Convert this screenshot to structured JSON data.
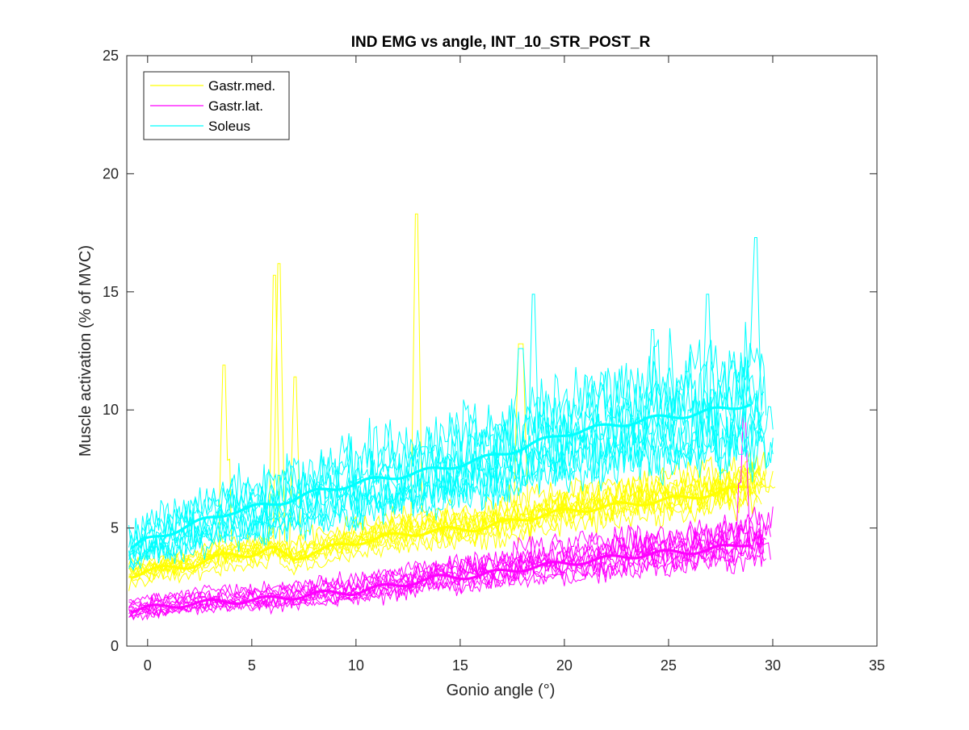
{
  "chart_data": {
    "type": "line",
    "title": "IND EMG vs angle, INT_10_STR_POST_R",
    "xlabel": "Gonio angle (°)",
    "ylabel": "Muscle activation (% of MVC)",
    "xlim": [
      -1,
      35
    ],
    "ylim": [
      0,
      25
    ],
    "xticks": [
      0,
      5,
      10,
      15,
      20,
      25,
      30,
      35
    ],
    "yticks": [
      0,
      5,
      10,
      15,
      20,
      25
    ],
    "xtick_labels": [
      "0",
      "5",
      "10",
      "15",
      "20",
      "25",
      "30",
      "35"
    ],
    "ytick_labels": [
      "0",
      "5",
      "10",
      "15",
      "20",
      "25"
    ],
    "grid": false,
    "legend_position": "top-left",
    "trial_count_per_muscle": 10,
    "series": [
      {
        "name": "Gastr.med.",
        "color": "#ffff00",
        "mean_x": [
          -0.8,
          0,
          2,
          4,
          5,
          6,
          7,
          8,
          10,
          12,
          14,
          16,
          18,
          20,
          22,
          24,
          26,
          28,
          29
        ],
        "mean_y": [
          3.0,
          3.2,
          3.4,
          3.9,
          3.9,
          4.1,
          3.7,
          4.0,
          4.4,
          4.7,
          4.9,
          5.0,
          5.4,
          5.7,
          5.9,
          6.1,
          6.3,
          6.6,
          6.8
        ],
        "spikes": [
          {
            "x": 3.7,
            "y": 11.9
          },
          {
            "x": 6.1,
            "y": 15.7
          },
          {
            "x": 6.3,
            "y": 16.2
          },
          {
            "x": 7.1,
            "y": 11.4
          },
          {
            "x": 12.9,
            "y": 18.3
          },
          {
            "x": 17.9,
            "y": 12.8
          }
        ]
      },
      {
        "name": "Gastr.lat.",
        "color": "#ff00ff",
        "mean_x": [
          -0.8,
          0,
          2,
          4,
          6,
          8,
          10,
          12,
          14,
          16,
          18,
          20,
          22,
          24,
          26,
          28,
          29
        ],
        "mean_y": [
          1.5,
          1.6,
          1.8,
          1.9,
          2.0,
          2.2,
          2.3,
          2.6,
          2.9,
          3.0,
          3.3,
          3.5,
          3.7,
          3.9,
          4.0,
          4.2,
          4.4
        ],
        "spikes": [
          {
            "x": 28.6,
            "y": 9.8
          }
        ]
      },
      {
        "name": "Soleus",
        "color": "#00ffff",
        "mean_x": [
          -0.8,
          0,
          2,
          4,
          6,
          8,
          10,
          12,
          14,
          16,
          18,
          20,
          22,
          24,
          26,
          28,
          29
        ],
        "mean_y": [
          4.1,
          4.5,
          5.1,
          5.7,
          6.0,
          6.5,
          6.9,
          7.2,
          7.5,
          7.9,
          8.4,
          9.0,
          9.3,
          9.6,
          9.8,
          10.1,
          10.3
        ],
        "spikes": [
          {
            "x": 17.9,
            "y": 12.6
          },
          {
            "x": 18.5,
            "y": 14.9
          },
          {
            "x": 24.2,
            "y": 13.4
          },
          {
            "x": 26.9,
            "y": 14.9
          },
          {
            "x": 29.2,
            "y": 17.3
          }
        ]
      }
    ]
  }
}
